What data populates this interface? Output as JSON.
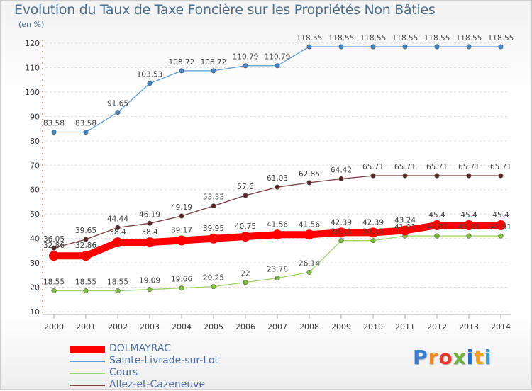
{
  "chart_data": {
    "type": "line",
    "title": "Evolution du Taux de Taxe Foncière sur les Propriétés Non Bâties",
    "ylabel": "(en %)",
    "xlabel": "",
    "ylim": [
      10,
      120
    ],
    "yticks": [
      10,
      20,
      30,
      40,
      50,
      60,
      70,
      80,
      90,
      100,
      110,
      120
    ],
    "grid": "horizontal-dashed",
    "legend_position": "bottom-left",
    "categories": [
      "2000",
      "2001",
      "2002",
      "2003",
      "2004",
      "2005",
      "2006",
      "2007",
      "2008",
      "2009",
      "2010",
      "2011",
      "2012",
      "2013",
      "2014"
    ],
    "series": [
      {
        "name": "Sainte-Livrade-sur-Lot",
        "color": "#5b9bd5",
        "values": [
          83.58,
          83.58,
          91.65,
          103.53,
          108.72,
          108.72,
          110.79,
          110.79,
          118.55,
          118.55,
          118.55,
          118.55,
          118.55,
          118.55,
          118.55
        ],
        "labels": [
          "83.58",
          "83.58",
          "91.65",
          "103.53",
          "108.72",
          "108.72",
          "110.79",
          "110.79",
          "118.55",
          "118.55",
          "118.55",
          "118.55",
          "118.55",
          "118.55",
          "118.55"
        ]
      },
      {
        "name": "Allez-et-Cazeneuve",
        "color": "#7a3e3e",
        "values": [
          36.05,
          39.65,
          44.44,
          46.19,
          49.19,
          53.33,
          57.6,
          61.03,
          62.85,
          64.42,
          65.71,
          65.71,
          65.71,
          65.71,
          65.71
        ],
        "labels": [
          "36.05",
          "39.65",
          "44.44",
          "46.19",
          "49.19",
          "53.33",
          "57.6",
          "61.03",
          "62.85",
          "64.42",
          "65.71",
          "65.71",
          "65.71",
          "65.71",
          "65.71"
        ]
      },
      {
        "name": "Cours",
        "color": "#9ed36a",
        "values": [
          18.55,
          18.55,
          18.55,
          19.09,
          19.66,
          20.25,
          22,
          23.76,
          26.14,
          39.11,
          39.11,
          41.01,
          41.01,
          41.01,
          41.01
        ],
        "labels": [
          "18.55",
          "18.55",
          "18.55",
          "19.09",
          "19.66",
          "20.25",
          "22",
          "23.76",
          "26.14",
          "39.11",
          "39.11",
          "41.01",
          "41.01",
          "41.01",
          "41.01"
        ]
      },
      {
        "name": "DOLMAYRAC",
        "color": "#ff0000",
        "values": [
          32.86,
          32.86,
          38.4,
          38.4,
          39.17,
          39.95,
          40.75,
          41.56,
          41.56,
          42.39,
          42.39,
          43.24,
          45.4,
          45.4,
          45.4
        ],
        "labels": [
          "32.86",
          "32.86",
          "38.4",
          "38.4",
          "39.17",
          "39.95",
          "40.75",
          "41.56",
          "41.56",
          "42.39",
          "42.39",
          "43.24",
          "45.4",
          "45.4",
          "45.4"
        ]
      }
    ],
    "legend": [
      {
        "name": "DOLMAYRAC",
        "color": "#ff0000"
      },
      {
        "name": "Sainte-Livrade-sur-Lot",
        "color": "#5b9bd5"
      },
      {
        "name": "Cours",
        "color": "#9ed36a"
      },
      {
        "name": "Allez-et-Cazeneuve",
        "color": "#7a3e3e"
      }
    ]
  },
  "brand": {
    "letters": [
      "P",
      "r",
      "o",
      "x",
      "i",
      "t",
      "i"
    ],
    "colors": [
      "#3a7fd0",
      "#f08a1c",
      "#e03b2a",
      "#6bb33c",
      "#1e6ec8",
      "#f0a020",
      "#3a9fd0"
    ]
  }
}
